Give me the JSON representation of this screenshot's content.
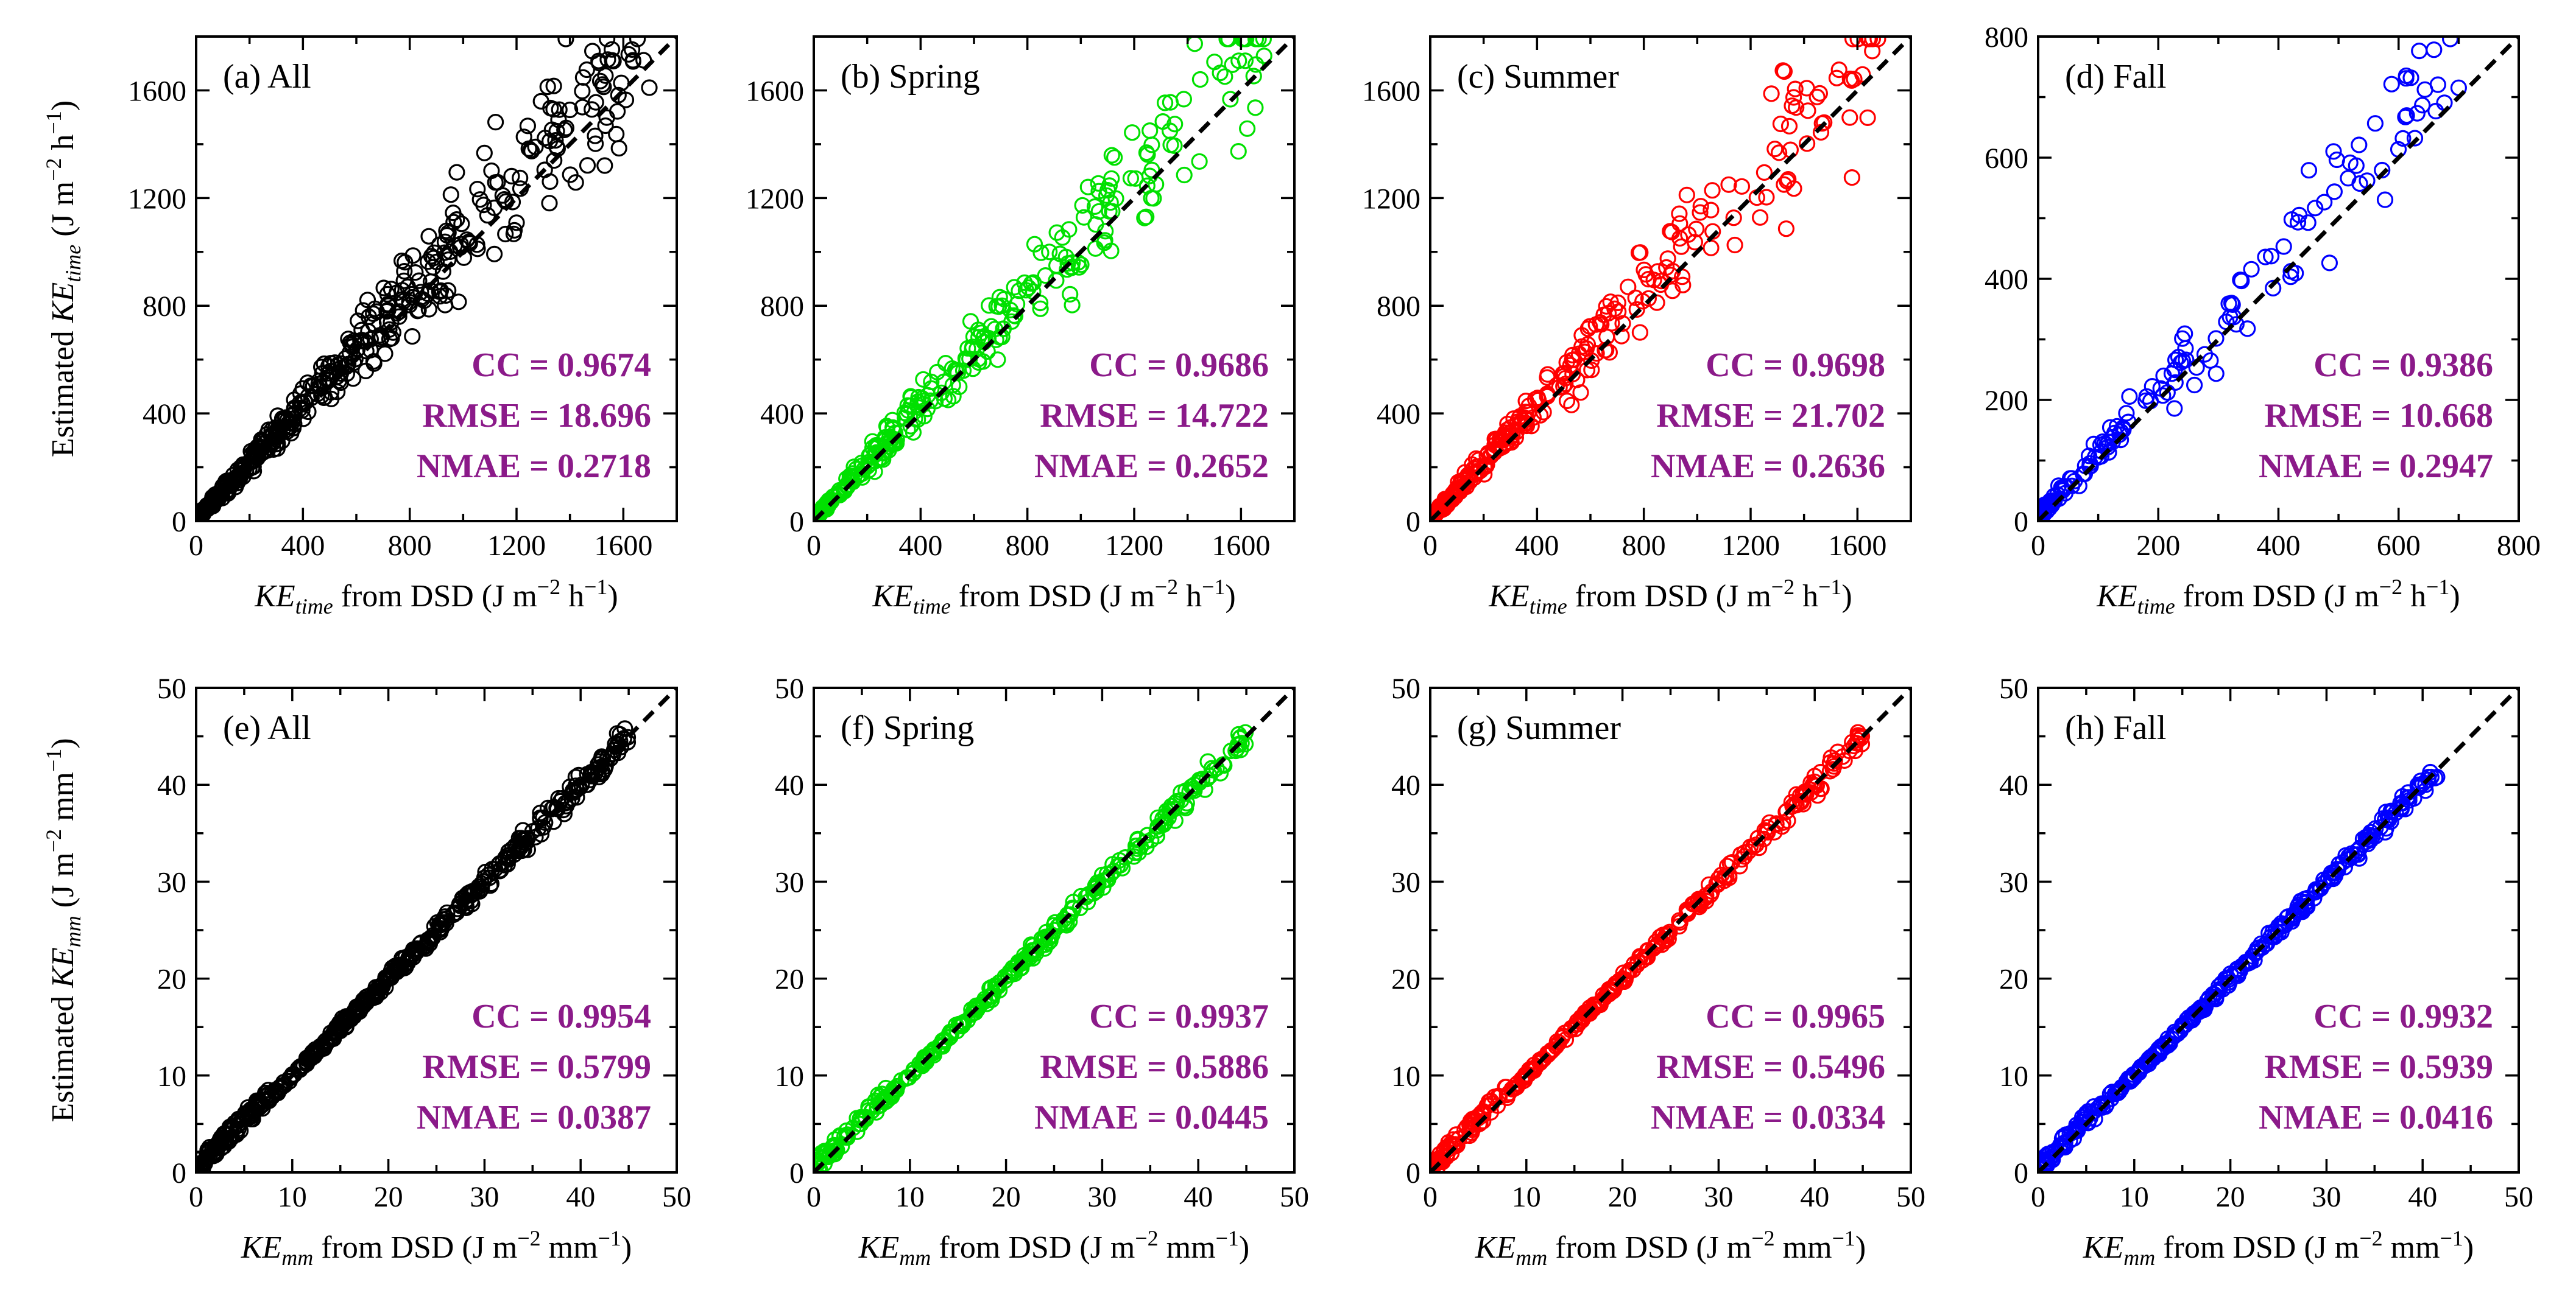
{
  "figure": {
    "stat_color": "#8B1A89",
    "axis_label_top_x": {
      "sym": "KE",
      "sub": "time",
      "rest": " from DSD (J m",
      "sup": "−2",
      "rest2": " h",
      "sup2": "−1",
      "end": ")"
    },
    "axis_label_bottom_x": {
      "sym": "KE",
      "sub": "mm",
      "rest": " from DSD (J m",
      "sup": "−2",
      "rest2": " mm",
      "sup2": "−1",
      "end": ")"
    },
    "axis_label_top_y": {
      "pre": "Estimated ",
      "sym": "KE",
      "sub": "time",
      "rest": " (J m",
      "sup": "−2",
      "rest2": " h",
      "sup2": "−1",
      "end": ")"
    },
    "axis_label_bottom_y": {
      "pre": "Estimated ",
      "sym": "KE",
      "sub": "mm",
      "rest": " (J m",
      "sup": "−2",
      "rest2": " mm",
      "sup2": "−1",
      "end": ")"
    }
  },
  "chart_data": [
    {
      "id": "a",
      "type": "scatter",
      "label": "(a) All",
      "season": "All",
      "color": "#000000",
      "row": 0,
      "col": 0,
      "xlim": [
        0,
        1800
      ],
      "ylim": [
        0,
        1800
      ],
      "xticks": [
        0,
        400,
        800,
        1200,
        1600
      ],
      "yticks": [
        0,
        400,
        800,
        1200,
        1600
      ],
      "reference_line": "1:1 dashed",
      "stats": {
        "CC": "0.9674",
        "RMSE": "18.696",
        "NMAE": "0.2718"
      },
      "spread": 0.3,
      "points": []
    },
    {
      "id": "b",
      "type": "scatter",
      "label": "(b) Spring",
      "season": "Spring",
      "color": "#00E000",
      "row": 0,
      "col": 1,
      "xlim": [
        0,
        1800
      ],
      "ylim": [
        0,
        1800
      ],
      "xticks": [
        0,
        400,
        800,
        1200,
        1600
      ],
      "yticks": [
        0,
        400,
        800,
        1200,
        1600
      ],
      "reference_line": "1:1 dashed",
      "stats": {
        "CC": "0.9686",
        "RMSE": "14.722",
        "NMAE": "0.2652"
      },
      "spread": 0.28,
      "points": []
    },
    {
      "id": "c",
      "type": "scatter",
      "label": "(c) Summer",
      "season": "Summer",
      "color": "#FF0000",
      "row": 0,
      "col": 2,
      "xlim": [
        0,
        1800
      ],
      "ylim": [
        0,
        1800
      ],
      "xticks": [
        0,
        400,
        800,
        1200,
        1600
      ],
      "yticks": [
        0,
        400,
        800,
        1200,
        1600
      ],
      "reference_line": "1:1 dashed",
      "stats": {
        "CC": "0.9698",
        "RMSE": "21.702",
        "NMAE": "0.2636"
      },
      "spread": 0.3,
      "points": []
    },
    {
      "id": "d",
      "type": "scatter",
      "label": "(d) Fall",
      "season": "Fall",
      "color": "#0000FF",
      "row": 0,
      "col": 3,
      "xlim": [
        0,
        800
      ],
      "ylim": [
        0,
        800
      ],
      "xticks": [
        0,
        200,
        400,
        600,
        800
      ],
      "yticks": [
        0,
        200,
        400,
        600,
        800
      ],
      "reference_line": "1:1 dashed",
      "stats": {
        "CC": "0.9386",
        "RMSE": "10.668",
        "NMAE": "0.2947"
      },
      "spread": 0.32,
      "points": []
    },
    {
      "id": "e",
      "type": "scatter",
      "label": "(e) All",
      "season": "All",
      "color": "#000000",
      "row": 1,
      "col": 0,
      "xlim": [
        0,
        50
      ],
      "ylim": [
        0,
        50
      ],
      "xticks": [
        0,
        10,
        20,
        30,
        40,
        50
      ],
      "yticks": [
        0,
        10,
        20,
        30,
        40,
        50
      ],
      "reference_line": "1:1 dashed",
      "stats": {
        "CC": "0.9954",
        "RMSE": "0.5799",
        "NMAE": "0.0387"
      },
      "spread": 0.06,
      "points": []
    },
    {
      "id": "f",
      "type": "scatter",
      "label": "(f) Spring",
      "season": "Spring",
      "color": "#00E000",
      "row": 1,
      "col": 1,
      "xlim": [
        0,
        50
      ],
      "ylim": [
        0,
        50
      ],
      "xticks": [
        0,
        10,
        20,
        30,
        40,
        50
      ],
      "yticks": [
        0,
        10,
        20,
        30,
        40,
        50
      ],
      "reference_line": "1:1 dashed",
      "stats": {
        "CC": "0.9937",
        "RMSE": "0.5886",
        "NMAE": "0.0445"
      },
      "spread": 0.06,
      "points": []
    },
    {
      "id": "g",
      "type": "scatter",
      "label": "(g) Summer",
      "season": "Summer",
      "color": "#FF0000",
      "row": 1,
      "col": 2,
      "xlim": [
        0,
        50
      ],
      "ylim": [
        0,
        50
      ],
      "xticks": [
        0,
        10,
        20,
        30,
        40,
        50
      ],
      "yticks": [
        0,
        10,
        20,
        30,
        40,
        50
      ],
      "reference_line": "1:1 dashed",
      "stats": {
        "CC": "0.9965",
        "RMSE": "0.5496",
        "NMAE": "0.0334"
      },
      "spread": 0.05,
      "points": []
    },
    {
      "id": "h",
      "type": "scatter",
      "label": "(h) Fall",
      "season": "Fall",
      "color": "#0000FF",
      "row": 1,
      "col": 3,
      "xlim": [
        0,
        50
      ],
      "ylim": [
        0,
        50
      ],
      "xticks": [
        0,
        10,
        20,
        30,
        40,
        50
      ],
      "yticks": [
        0,
        10,
        20,
        30,
        40,
        50
      ],
      "reference_line": "1:1 dashed",
      "stats": {
        "CC": "0.9932",
        "RMSE": "0.5939",
        "NMAE": "0.0416"
      },
      "spread": 0.05,
      "points": []
    }
  ]
}
